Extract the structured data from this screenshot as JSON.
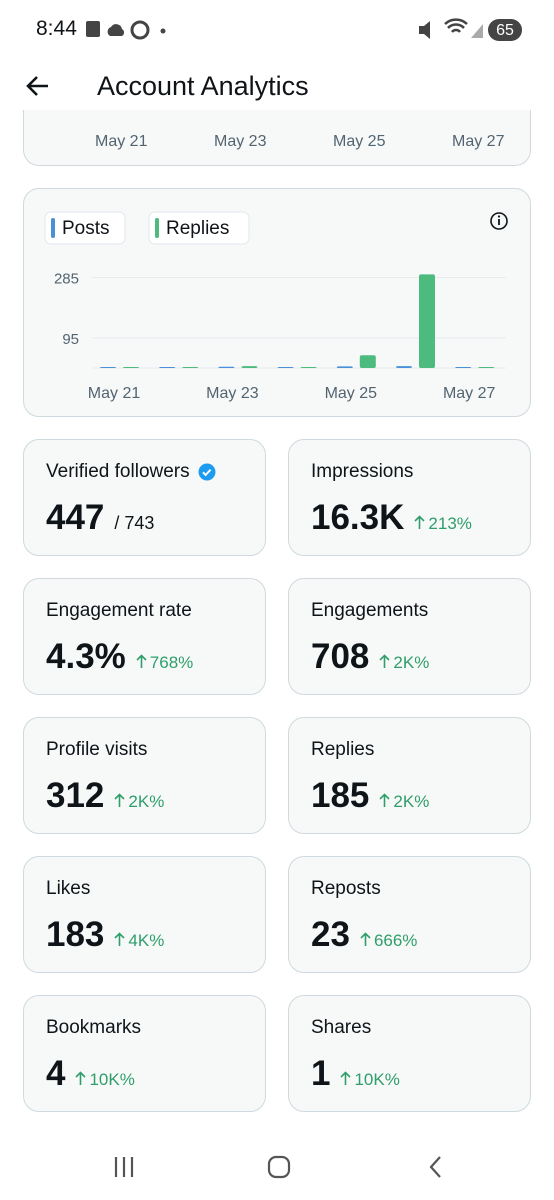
{
  "status_bar": {
    "time": "8:44",
    "battery": "65"
  },
  "header": {
    "title": "Account Analytics"
  },
  "top_chart": {
    "x_labels": [
      "May 21",
      "May 23",
      "May 25",
      "May 27"
    ]
  },
  "chart_data": {
    "type": "bar",
    "categories": [
      "May 21",
      null,
      "May 23",
      null,
      "May 25",
      null,
      "May 27"
    ],
    "series": [
      {
        "name": "Posts",
        "color": "#4a90d9",
        "values": [
          2,
          3,
          4,
          3,
          5,
          6,
          0
        ]
      },
      {
        "name": "Replies",
        "color": "#4dbb7e",
        "values": [
          1,
          2,
          6,
          2,
          40,
          295,
          0
        ]
      }
    ],
    "ylim": [
      0,
      315
    ],
    "yticks": [
      95,
      285
    ],
    "grid": true
  },
  "stats": [
    {
      "label": "Verified followers",
      "value": "447",
      "total": "/ 743",
      "verified": true
    },
    {
      "label": "Impressions",
      "value": "16.3K",
      "change": "213%"
    },
    {
      "label": "Engagement rate",
      "value": "4.3%",
      "change": "768%"
    },
    {
      "label": "Engagements",
      "value": "708",
      "change": "2K%"
    },
    {
      "label": "Profile visits",
      "value": "312",
      "change": "2K%"
    },
    {
      "label": "Replies",
      "value": "185",
      "change": "2K%"
    },
    {
      "label": "Likes",
      "value": "183",
      "change": "4K%"
    },
    {
      "label": "Reposts",
      "value": "23",
      "change": "666%"
    },
    {
      "label": "Bookmarks",
      "value": "4",
      "change": "10K%"
    },
    {
      "label": "Shares",
      "value": "1",
      "change": "10K%"
    }
  ]
}
